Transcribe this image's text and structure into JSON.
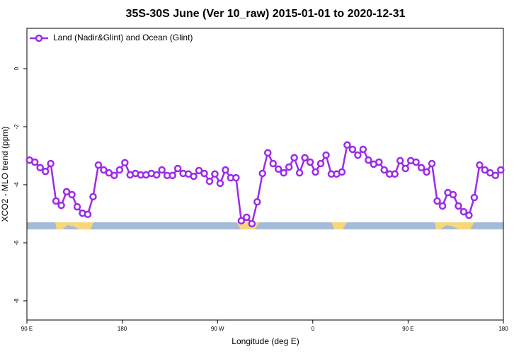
{
  "chart_data": {
    "type": "line",
    "title": "35S-30S June (Ver 10_raw)   2015-01-01 to 2020-12-31",
    "x_label": "Longitude (deg E)",
    "y_label": "XCO2 - MLO trend (ppm)",
    "x": [
      92.5,
      97.5,
      102.5,
      107.5,
      112.5,
      117.5,
      122.5,
      127.5,
      132.5,
      137.5,
      142.5,
      147.5,
      152.5,
      157.5,
      162.5,
      167.5,
      172.5,
      177.5,
      182.5,
      187.5,
      192.5,
      197.5,
      202.5,
      207.5,
      212.5,
      217.5,
      222.5,
      227.5,
      232.5,
      237.5,
      242.5,
      247.5,
      252.5,
      257.5,
      262.5,
      267.5,
      272.5,
      277.5,
      282.5,
      287.5,
      292.5,
      297.5,
      302.5,
      307.5,
      312.5,
      317.5,
      322.5,
      327.5,
      332.5,
      337.5,
      342.5,
      347.5,
      352.5,
      357.5,
      362.5,
      367.5,
      372.5,
      377.5,
      382.5,
      387.5,
      392.5,
      397.5,
      402.5,
      407.5,
      412.5,
      417.5,
      422.5,
      427.5,
      432.5,
      437.5,
      442.5,
      447.5,
      452.5,
      457.5,
      462.5,
      467.5,
      472.5,
      477.5,
      482.5,
      487.5,
      492.5,
      497.5,
      502.5,
      507.5,
      512.5,
      517.5,
      522.5,
      527.5,
      532.5,
      537.5
    ],
    "series": [
      {
        "name": "Land (Nadir&Glint) and Ocean (Glint)",
        "color": "#9b2be8",
        "values": [
          -3.15,
          -3.22,
          -3.41,
          -3.54,
          -3.27,
          -4.56,
          -4.71,
          -4.24,
          -4.34,
          -4.76,
          -4.98,
          -5.02,
          -4.41,
          -3.32,
          -3.49,
          -3.59,
          -3.68,
          -3.49,
          -3.24,
          -3.66,
          -3.61,
          -3.66,
          -3.66,
          -3.61,
          -3.66,
          -3.49,
          -3.68,
          -3.68,
          -3.44,
          -3.61,
          -3.63,
          -3.71,
          -3.51,
          -3.61,
          -3.88,
          -3.63,
          -3.95,
          -3.49,
          -3.76,
          -3.76,
          -5.24,
          -5.12,
          -5.34,
          -4.59,
          -3.61,
          -2.9,
          -3.27,
          -3.46,
          -3.59,
          -3.39,
          -3.07,
          -3.59,
          -3.07,
          -3.22,
          -3.56,
          -3.27,
          -2.98,
          -3.63,
          -3.63,
          -3.56,
          -2.63,
          -2.78,
          -2.98,
          -2.78,
          -3.15,
          -3.29,
          -3.22,
          -3.49,
          -3.63,
          -3.63,
          -3.17,
          -3.44,
          -3.17,
          -3.22,
          -3.41,
          -3.56,
          -3.27,
          -4.56,
          -4.73,
          -4.27,
          -4.34,
          -4.73,
          -4.93,
          -5.05,
          -4.44,
          -3.32,
          -3.49,
          -3.59,
          -3.68,
          -3.49
        ]
      }
    ],
    "xlim": [
      90,
      540
    ],
    "ylim": [
      -8.66,
      1.39
    ],
    "xticks": [
      {
        "value": 90,
        "label": "90 E"
      },
      180,
      {
        "value": 270,
        "label": "90 W"
      },
      {
        "value": 360,
        "label": "0"
      },
      {
        "value": 450,
        "label": "90 E"
      },
      {
        "value": 540,
        "label": "180"
      }
    ],
    "yticks": [
      0,
      -2,
      -4,
      -6,
      -8
    ],
    "legend": "top-left"
  }
}
